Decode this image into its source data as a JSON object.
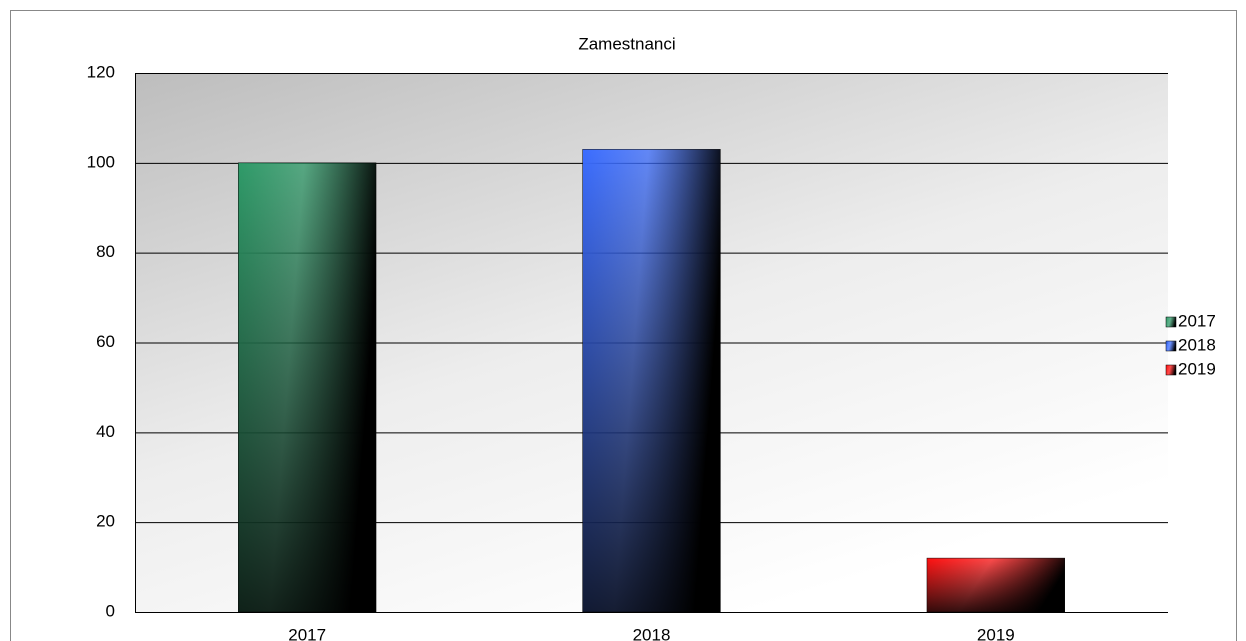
{
  "chart_data": {
    "type": "bar",
    "title": "Zamestnanci",
    "categories": [
      "2017",
      "2018",
      "2019"
    ],
    "values": [
      100,
      103,
      12
    ],
    "colors": [
      "#2e9a68",
      "#3a6cff",
      "#ff1010"
    ],
    "ylim": [
      0,
      120
    ],
    "yticks": [
      0,
      20,
      40,
      60,
      80,
      100,
      120
    ],
    "grid": true,
    "legend": "right"
  }
}
